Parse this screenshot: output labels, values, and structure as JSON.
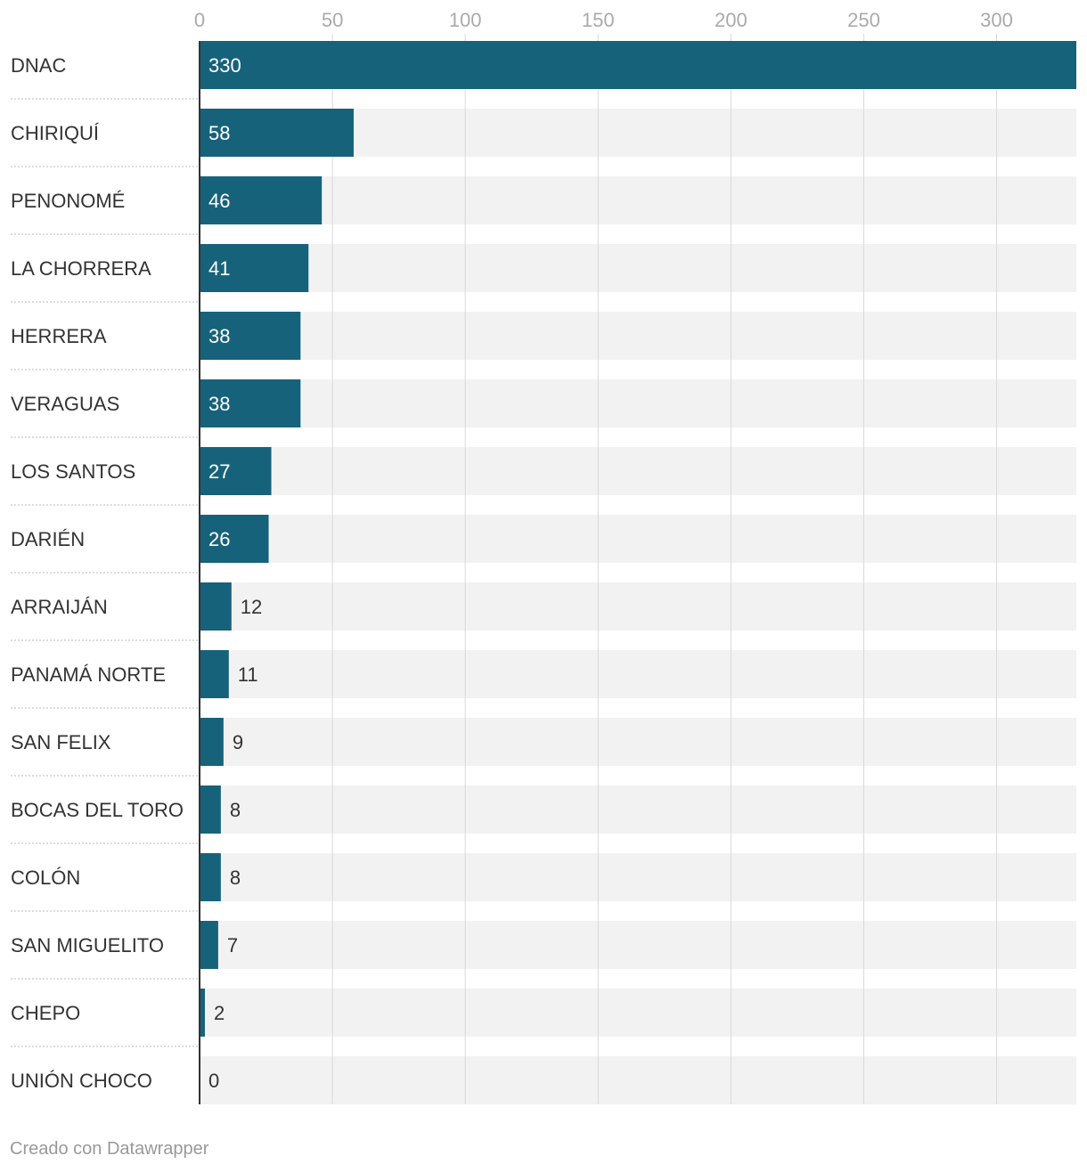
{
  "chart_data": {
    "type": "bar",
    "orientation": "horizontal",
    "categories": [
      "DNAC",
      "CHIRIQUÍ",
      "PENONOMÉ",
      "LA CHORRERA",
      "HERRERA",
      "VERAGUAS",
      "LOS SANTOS",
      "DARIÉN",
      "ARRAIJÁN",
      "PANAMÁ NORTE",
      "SAN FELIX",
      "BOCAS DEL TORO",
      "COLÓN",
      "SAN MIGUELITO",
      "CHEPO",
      "UNIÓN CHOCO"
    ],
    "values": [
      330,
      58,
      46,
      41,
      38,
      38,
      27,
      26,
      12,
      11,
      9,
      8,
      8,
      7,
      2,
      0
    ],
    "x_ticks": [
      0,
      50,
      100,
      150,
      200,
      250,
      300
    ],
    "xlim": [
      0,
      330
    ],
    "grid": true,
    "xlabel": "",
    "ylabel": "",
    "title": "",
    "colors": {
      "bar": "#17627b",
      "track": "#f2f2f2",
      "grid": "#d9d9d9",
      "label": "#333333",
      "tick": "#aaaaaa",
      "value_inside": "#ffffff",
      "value_outside": "#333333"
    }
  },
  "footer": {
    "credit": "Creado con Datawrapper"
  }
}
